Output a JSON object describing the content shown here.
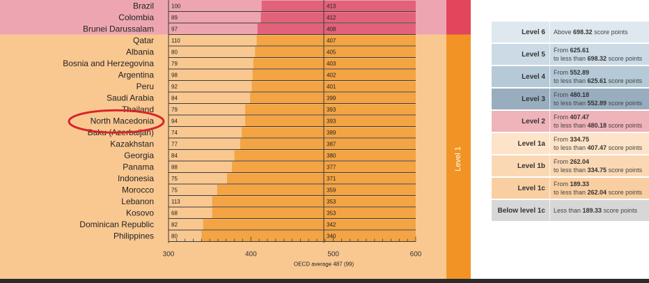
{
  "chart_data": {
    "type": "bar",
    "orientation": "horizontal",
    "categories": [
      "Brazil",
      "Colombia",
      "Brunei Darussalam",
      "Qatar",
      "Albania",
      "Bosnia and Herzegovina",
      "Argentina",
      "Peru",
      "Saudi Arabia",
      "Thailand",
      "North Macedonia",
      "Baku (Azerbaijan)",
      "Kazakhstan",
      "Georgia",
      "Panama",
      "Indonesia",
      "Morocco",
      "Lebanon",
      "Kosovo",
      "Dominican Republic",
      "Philippines"
    ],
    "values": [
      413,
      412,
      408,
      407,
      405,
      403,
      402,
      401,
      399,
      393,
      393,
      389,
      387,
      380,
      377,
      371,
      359,
      353,
      353,
      342,
      340
    ],
    "secondary_values": [
      100,
      89,
      97,
      110,
      80,
      79,
      98,
      92,
      84,
      79,
      94,
      74,
      77,
      84,
      88,
      75,
      75,
      113,
      68,
      82,
      80
    ],
    "xlim": [
      300,
      600
    ],
    "xticks": [
      300,
      400,
      500,
      600
    ],
    "xlabel": "OECD average 487 (99)",
    "side_band_label": "Level 1",
    "highlight": "North Macedonia",
    "level2_rows": 3
  },
  "legend": {
    "rows": [
      {
        "level": "Level 6",
        "line1": "Above ",
        "bold1": "698.32",
        "tail1": " score points",
        "line2": "",
        "bold2": "",
        "tail2": "",
        "color": "#dfe8ef"
      },
      {
        "level": "Level 5",
        "line1": "From ",
        "bold1": "625.61",
        "tail1": "",
        "line2": "to less than ",
        "bold2": "698.32",
        "tail2": " score points",
        "color": "#cbdae5"
      },
      {
        "level": "Level 4",
        "line1": "From ",
        "bold1": "552.89",
        "tail1": "",
        "line2": "to less than ",
        "bold2": "625.61",
        "tail2": " score points",
        "color": "#b5c9d7"
      },
      {
        "level": "Level 3",
        "line1": "From ",
        "bold1": "480.18",
        "tail1": "",
        "line2": "to less than ",
        "bold2": "552.89",
        "tail2": " score points",
        "color": "#98aebf"
      },
      {
        "level": "Level 2",
        "line1": "From ",
        "bold1": "407.47",
        "tail1": "",
        "line2": "to less than ",
        "bold2": "480.18",
        "tail2": " score points",
        "color": "#efb3ba"
      },
      {
        "level": "Level 1a",
        "line1": "From ",
        "bold1": "334.75",
        "tail1": "",
        "line2": "to less than ",
        "bold2": "407.47",
        "tail2": " score points",
        "color": "#fde3c8"
      },
      {
        "level": "Level 1b",
        "line1": "From ",
        "bold1": "262.04",
        "tail1": "",
        "line2": "to less than ",
        "bold2": "334.75",
        "tail2": " score points",
        "color": "#fbd8b4"
      },
      {
        "level": "Level 1c",
        "line1": "From ",
        "bold1": "189.33",
        "tail1": "",
        "line2": "to less than  ",
        "bold2": "262.04",
        "tail2": " score points",
        "color": "#f9cfa2"
      },
      {
        "level": "Below level 1c",
        "line1": "Less than ",
        "bold1": "189.33",
        "tail1": " score points",
        "line2": "",
        "bold2": "",
        "tail2": "",
        "color": "#d7d7d7"
      }
    ]
  },
  "colors": {
    "pink_band": "#eda6b1",
    "orange_band": "#f9c891",
    "bar_pink": "#e2627a",
    "bar_orange": "#f4a443",
    "side_red": "#e2465c",
    "side_orange": "#f19425",
    "highlight": "#d8242a"
  }
}
